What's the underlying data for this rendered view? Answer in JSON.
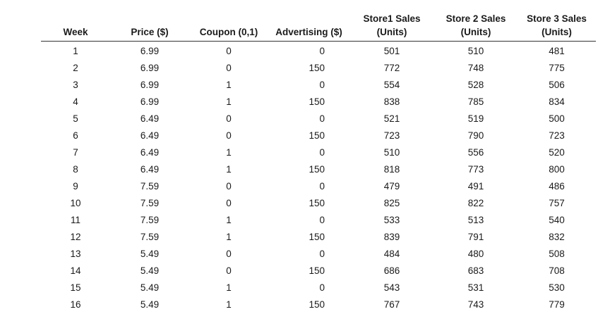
{
  "table": {
    "headers": [
      {
        "lines": [
          "Week"
        ]
      },
      {
        "lines": [
          "Price ($)"
        ]
      },
      {
        "lines": [
          "Coupon (0,1)"
        ]
      },
      {
        "lines": [
          "Advertising ($)"
        ]
      },
      {
        "lines": [
          "Store1 Sales",
          "(Units)"
        ]
      },
      {
        "lines": [
          "Store 2 Sales",
          "(Units)"
        ]
      },
      {
        "lines": [
          "Store 3 Sales",
          "(Units)"
        ]
      }
    ],
    "rows": [
      [
        "1",
        "6.99",
        "0",
        "0",
        "501",
        "510",
        "481"
      ],
      [
        "2",
        "6.99",
        "0",
        "150",
        "772",
        "748",
        "775"
      ],
      [
        "3",
        "6.99",
        "1",
        "0",
        "554",
        "528",
        "506"
      ],
      [
        "4",
        "6.99",
        "1",
        "150",
        "838",
        "785",
        "834"
      ],
      [
        "5",
        "6.49",
        "0",
        "0",
        "521",
        "519",
        "500"
      ],
      [
        "6",
        "6.49",
        "0",
        "150",
        "723",
        "790",
        "723"
      ],
      [
        "7",
        "6.49",
        "1",
        "0",
        "510",
        "556",
        "520"
      ],
      [
        "8",
        "6.49",
        "1",
        "150",
        "818",
        "773",
        "800"
      ],
      [
        "9",
        "7.59",
        "0",
        "0",
        "479",
        "491",
        "486"
      ],
      [
        "10",
        "7.59",
        "0",
        "150",
        "825",
        "822",
        "757"
      ],
      [
        "11",
        "7.59",
        "1",
        "0",
        "533",
        "513",
        "540"
      ],
      [
        "12",
        "7.59",
        "1",
        "150",
        "839",
        "791",
        "832"
      ],
      [
        "13",
        "5.49",
        "0",
        "0",
        "484",
        "480",
        "508"
      ],
      [
        "14",
        "5.49",
        "0",
        "150",
        "686",
        "683",
        "708"
      ],
      [
        "15",
        "5.49",
        "1",
        "0",
        "543",
        "531",
        "530"
      ],
      [
        "16",
        "5.49",
        "1",
        "150",
        "767",
        "743",
        "779"
      ]
    ]
  }
}
